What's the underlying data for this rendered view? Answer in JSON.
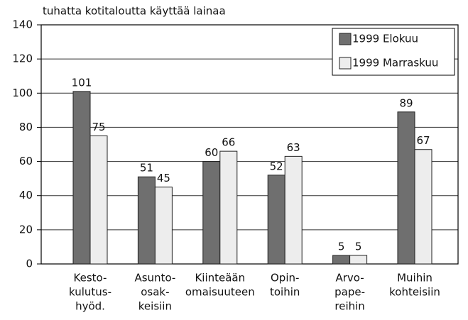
{
  "chart_data": {
    "type": "bar",
    "y_label": "tuhatta kotitaloutta käyttää lainaa",
    "categories": [
      [
        "Kesto-",
        "kulutus-",
        "hyöd."
      ],
      [
        "Asunto-",
        "osak-",
        "keisiin"
      ],
      [
        "Kiinteään",
        "omaisuuteen"
      ],
      [
        "Opin-",
        "toihin"
      ],
      [
        "Arvo-",
        "pape-",
        "reihin"
      ],
      [
        "Muihin",
        "kohteisiin"
      ]
    ],
    "series": [
      {
        "name": "1999 Elokuu",
        "color": "#6f6f6f",
        "values": [
          101,
          51,
          60,
          52,
          5,
          89
        ]
      },
      {
        "name": "1999 Marraskuu",
        "color": "#ededed",
        "values": [
          75,
          45,
          66,
          63,
          5,
          67
        ]
      }
    ],
    "ylim": [
      0,
      140
    ],
    "yticks": [
      0,
      20,
      40,
      60,
      80,
      100,
      120,
      140
    ],
    "grid": true,
    "legend": "top-right"
  }
}
